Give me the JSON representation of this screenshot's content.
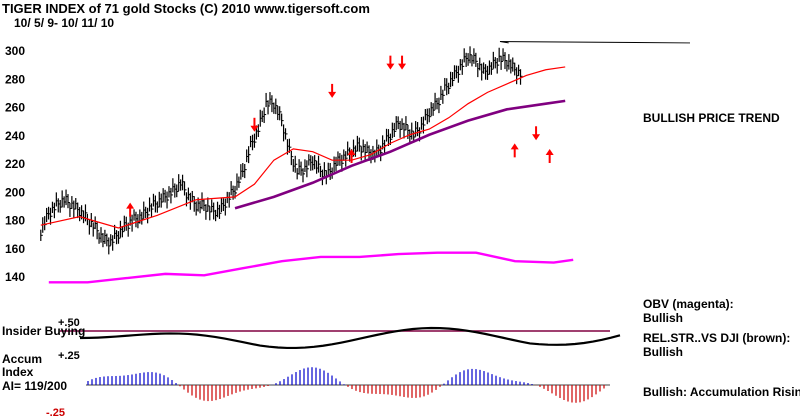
{
  "chart_data": {
    "type": "candlestick",
    "title": "TIGER INDEX of  71 gold Stocks  (C) 2010  www.tigersoft.com",
    "subtitle": "10/ 5/ 9- 10/ 11/ 10",
    "y_ticks": [
      "300",
      "280",
      "260",
      "240",
      "220",
      "200",
      "180",
      "160",
      "140"
    ],
    "ylim": [
      136,
      310
    ],
    "x_range": [
      0,
      270
    ],
    "price_close": [
      [
        0,
        172
      ],
      [
        4,
        184
      ],
      [
        8,
        190
      ],
      [
        12,
        194
      ],
      [
        16,
        190
      ],
      [
        20,
        186
      ],
      [
        24,
        180
      ],
      [
        28,
        174
      ],
      [
        32,
        166
      ],
      [
        36,
        164
      ],
      [
        40,
        170
      ],
      [
        44,
        176
      ],
      [
        48,
        180
      ],
      [
        52,
        182
      ],
      [
        56,
        188
      ],
      [
        60,
        192
      ],
      [
        64,
        196
      ],
      [
        68,
        200
      ],
      [
        72,
        206
      ],
      [
        76,
        196
      ],
      [
        80,
        190
      ],
      [
        84,
        190
      ],
      [
        88,
        186
      ],
      [
        92,
        186
      ],
      [
        96,
        194
      ],
      [
        100,
        202
      ],
      [
        104,
        214
      ],
      [
        108,
        232
      ],
      [
        112,
        244
      ],
      [
        116,
        262
      ],
      [
        120,
        262
      ],
      [
        124,
        250
      ],
      [
        128,
        228
      ],
      [
        132,
        214
      ],
      [
        136,
        216
      ],
      [
        140,
        222
      ],
      [
        144,
        214
      ],
      [
        148,
        212
      ],
      [
        152,
        220
      ],
      [
        156,
        224
      ],
      [
        160,
        228
      ],
      [
        164,
        232
      ],
      [
        168,
        228
      ],
      [
        172,
        226
      ],
      [
        176,
        232
      ],
      [
        180,
        240
      ],
      [
        184,
        248
      ],
      [
        188,
        244
      ],
      [
        192,
        240
      ],
      [
        196,
        246
      ],
      [
        200,
        256
      ],
      [
        204,
        262
      ],
      [
        208,
        272
      ],
      [
        212,
        280
      ],
      [
        216,
        288
      ],
      [
        220,
        296
      ],
      [
        224,
        292
      ],
      [
        228,
        284
      ],
      [
        232,
        288
      ],
      [
        236,
        294
      ],
      [
        240,
        292
      ],
      [
        244,
        286
      ],
      [
        248,
        282
      ]
    ],
    "ma_red": [
      [
        0,
        176
      ],
      [
        20,
        182
      ],
      [
        40,
        174
      ],
      [
        60,
        183
      ],
      [
        80,
        194
      ],
      [
        100,
        196
      ],
      [
        110,
        205
      ],
      [
        120,
        222
      ],
      [
        130,
        230
      ],
      [
        140,
        228
      ],
      [
        150,
        222
      ],
      [
        160,
        222
      ],
      [
        170,
        226
      ],
      [
        180,
        234
      ],
      [
        190,
        240
      ],
      [
        200,
        244
      ],
      [
        210,
        252
      ],
      [
        220,
        262
      ],
      [
        230,
        270
      ],
      [
        240,
        276
      ],
      [
        250,
        282
      ],
      [
        260,
        286
      ],
      [
        270,
        288
      ]
    ],
    "ma_purple": [
      [
        100,
        188
      ],
      [
        120,
        196
      ],
      [
        140,
        206
      ],
      [
        160,
        218
      ],
      [
        180,
        228
      ],
      [
        200,
        240
      ],
      [
        220,
        250
      ],
      [
        240,
        258
      ],
      [
        260,
        262
      ],
      [
        270,
        264
      ]
    ],
    "up_arrows": [
      [
        46,
        182
      ],
      [
        160,
        220
      ],
      [
        244,
        224
      ],
      [
        262,
        220
      ]
    ],
    "down_arrows": [
      [
        110,
        252
      ],
      [
        150,
        276
      ],
      [
        180,
        296
      ],
      [
        186,
        296
      ],
      [
        255,
        246
      ]
    ],
    "obv_magenta": [
      [
        0,
        137
      ],
      [
        20,
        136
      ],
      [
        40,
        138
      ],
      [
        60,
        140
      ],
      [
        80,
        142
      ],
      [
        100,
        146
      ],
      [
        120,
        150
      ],
      [
        140,
        152
      ],
      [
        160,
        155
      ],
      [
        180,
        156
      ],
      [
        200,
        156
      ],
      [
        220,
        155
      ],
      [
        240,
        152
      ],
      [
        260,
        150
      ],
      [
        270,
        151
      ]
    ],
    "insider_buying_label": "Insider Buying",
    "insider_levels": [
      "+.50",
      "+.25",
      "-.25"
    ],
    "accum_label_line1": "Accum",
    "accum_label_line2": "Index",
    "ai_value": "AI= 119/200",
    "annotations": {
      "bullish_price_trend": "BULLISH PRICE TREND",
      "obv_label": "OBV (magenta):",
      "obv_status": "Bullish",
      "relstr_label": "REL.STR..VS DJI (brown):",
      "relstr_status": "Bullish",
      "accum_status": "Bullish: Accumulation Rising"
    },
    "colors": {
      "ma_short": "#ff0000",
      "ma_long": "#800080",
      "obv": "#ff00ff",
      "arrows": "#ff0000",
      "accum_pos": "#0000cc",
      "accum_neg": "#cc0000",
      "baseline": "#800040"
    }
  }
}
